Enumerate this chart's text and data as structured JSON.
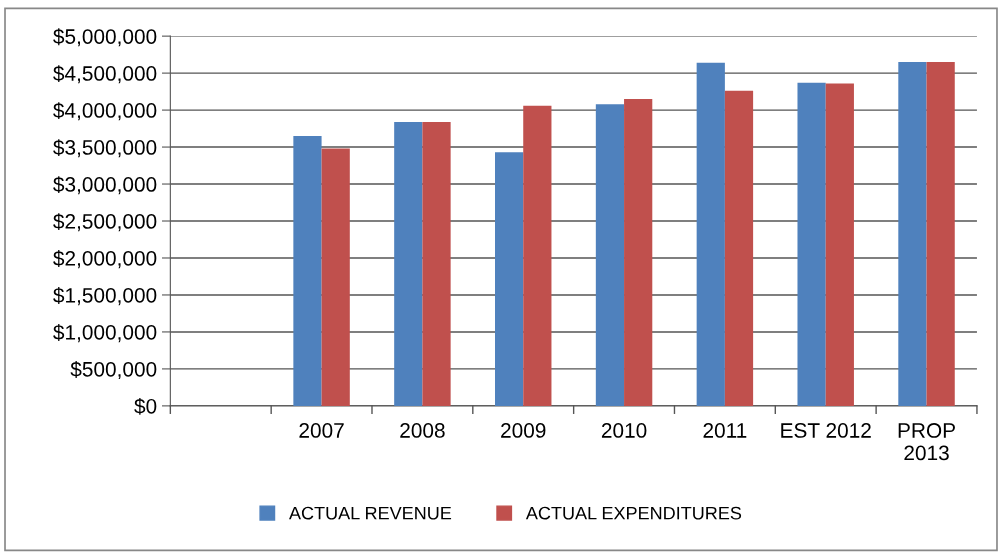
{
  "chart_data": {
    "type": "bar",
    "categories": [
      null,
      "2007",
      "2008",
      "2009",
      "2010",
      "2011",
      "EST 2012",
      "PROP\n2013"
    ],
    "series": [
      {
        "name": "ACTUAL REVENUE",
        "color": "#4f81bd",
        "values": [
          null,
          3650000,
          3840000,
          3430000,
          4080000,
          4640000,
          4370000,
          4650000
        ]
      },
      {
        "name": "ACTUAL EXPENDITURES",
        "color": "#c0504d",
        "values": [
          null,
          3480000,
          3840000,
          4060000,
          4150000,
          4260000,
          4360000,
          4650000
        ]
      }
    ],
    "ylim": [
      0,
      5000000
    ],
    "yticks": [
      {
        "value": 0,
        "label": "$0"
      },
      {
        "value": 500000,
        "label": "$500,000"
      },
      {
        "value": 1000000,
        "label": "$1,000,000"
      },
      {
        "value": 1500000,
        "label": "$1,500,000"
      },
      {
        "value": 2000000,
        "label": "$2,000,000"
      },
      {
        "value": 2500000,
        "label": "$2,500,000"
      },
      {
        "value": 3000000,
        "label": "$3,000,000"
      },
      {
        "value": 3500000,
        "label": "$3,500,000"
      },
      {
        "value": 4000000,
        "label": "$4,000,000"
      },
      {
        "value": 4500000,
        "label": "$4,500,000"
      },
      {
        "value": 5000000,
        "label": "$5,000,000"
      }
    ],
    "grid": "y",
    "legend": "bottom"
  }
}
